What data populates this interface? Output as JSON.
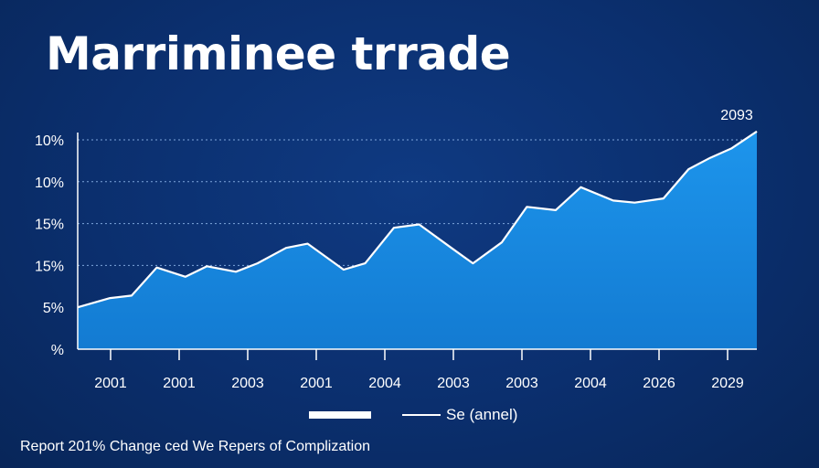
{
  "title": "Marriminee trrade",
  "chart_data": {
    "type": "area",
    "title": "Marriminee trrade",
    "annotation": "2093",
    "y_tick_labels": [
      "%",
      "5%",
      "15%",
      "15%",
      "10%",
      "10%"
    ],
    "x_tick_labels": [
      "2001",
      "2001",
      "2003",
      "2001",
      "2004",
      "2003",
      "2003",
      "2004",
      "2026",
      "2029"
    ],
    "ylim": [
      0,
      5
    ],
    "grid": true,
    "series": [
      {
        "color": "#1a8ae0",
        "x": [
          0,
          0.45,
          0.75,
          1.1,
          1.5,
          1.8,
          2.2,
          2.5,
          2.9,
          3.2,
          3.7,
          4.0,
          4.4,
          4.75,
          5.2,
          5.5,
          5.9,
          6.25,
          6.65,
          7.0,
          7.45,
          7.75,
          8.15,
          8.5,
          8.8,
          9.1,
          9.45
        ],
        "y": [
          1.0,
          1.22,
          1.28,
          1.95,
          1.73,
          1.98,
          1.85,
          2.05,
          2.42,
          2.52,
          1.9,
          2.05,
          2.9,
          2.98,
          2.42,
          2.05,
          2.55,
          3.4,
          3.32,
          3.87,
          3.55,
          3.5,
          3.6,
          4.3,
          4.57,
          4.8,
          5.2
        ]
      }
    ],
    "legend": {
      "position": "bottom",
      "entries": [
        "",
        "Se (annel)"
      ]
    }
  },
  "footer": "Report 201% Change ced We Repers of Complization"
}
